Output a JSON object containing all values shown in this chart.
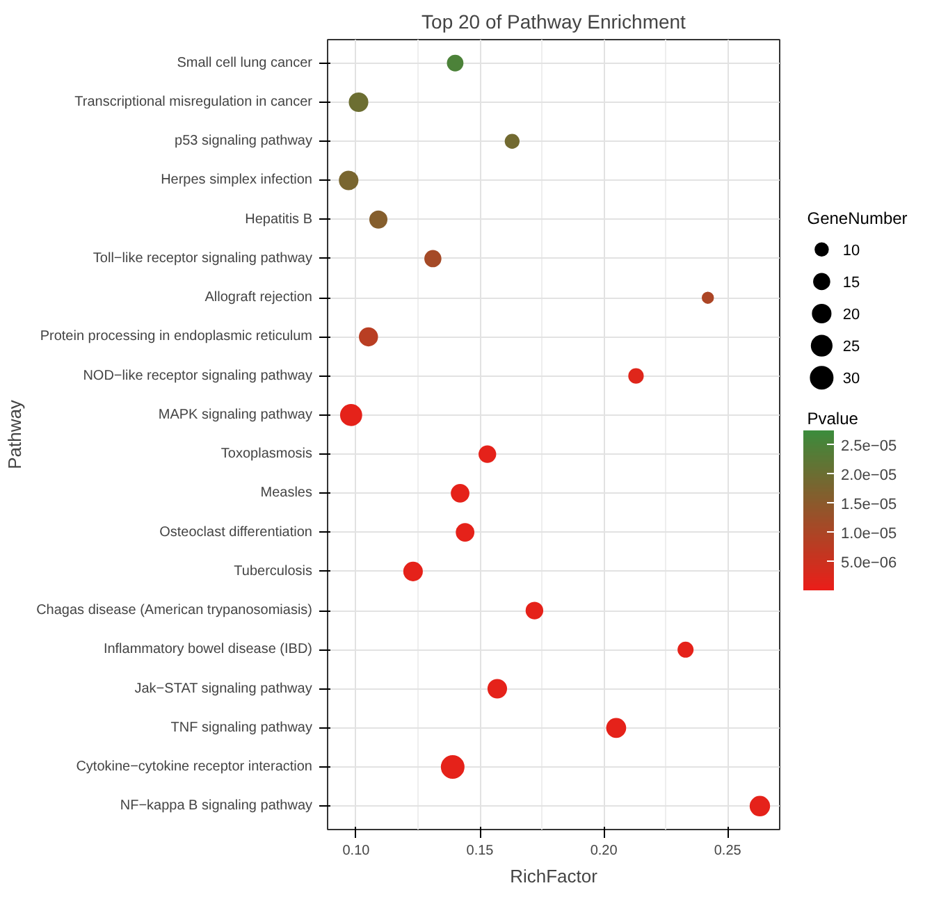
{
  "chart_data": {
    "type": "bubble",
    "title": "Top 20 of Pathway Enrichment",
    "xlabel": "RichFactor",
    "ylabel": "Pathway",
    "orientation": "horizontal",
    "categories": [
      "Small cell lung cancer",
      "Transcriptional misregulation in cancer",
      "p53 signaling pathway",
      "Herpes simplex infection",
      "Hepatitis B",
      "Toll−like receptor signaling pathway",
      "Allograft rejection",
      "Protein processing in endoplasmic reticulum",
      "NOD−like receptor signaling pathway",
      "MAPK signaling pathway",
      "Toxoplasmosis",
      "Measles",
      "Osteoclast differentiation",
      "Tuberculosis",
      "Chagas disease (American trypanosomiasis)",
      "Inflammatory bowel disease (IBD)",
      "Jak−STAT signaling pathway",
      "TNF signaling pathway",
      "Cytokine−cytokine receptor interaction",
      "NF−kappa B signaling pathway"
    ],
    "values": [
      0.14,
      0.101,
      0.163,
      0.097,
      0.109,
      0.131,
      0.242,
      0.105,
      0.213,
      0.098,
      0.153,
      0.142,
      0.144,
      0.123,
      0.172,
      0.233,
      0.157,
      0.205,
      0.139,
      0.263
    ],
    "sizes": [
      14,
      20,
      11,
      20,
      17,
      15,
      7,
      19,
      12,
      26,
      16,
      18,
      18,
      20,
      16,
      13,
      20,
      21,
      30,
      22
    ],
    "cvalues": [
      2.5e-05,
      2e-05,
      1.9e-05,
      1.8e-05,
      1.6e-05,
      1.1e-05,
      1e-05,
      8e-06,
      2e-06,
      1e-06,
      1e-06,
      1e-06,
      1e-06,
      1e-06,
      1e-06,
      1e-06,
      1e-06,
      1e-06,
      1e-06,
      1e-06
    ],
    "size_legend": [
      10,
      15,
      20,
      25,
      30
    ],
    "legend_title": "GeneNumber",
    "clabel": "Pvalue",
    "clim": [
      1e-07,
      2.75e-05
    ],
    "cticks": [
      {
        "value": 5e-06,
        "label": "5.0e−06"
      },
      {
        "value": 1e-05,
        "label": "1.0e−05"
      },
      {
        "value": 1.5e-05,
        "label": "1.5e−05"
      },
      {
        "value": 2e-05,
        "label": "2.0e−05"
      },
      {
        "value": 2.5e-05,
        "label": "2.5e−05"
      }
    ],
    "xlim": [
      0.0885,
      0.271
    ],
    "xticks": [
      {
        "value": 0.1,
        "label": "0.10"
      },
      {
        "value": 0.15,
        "label": "0.15"
      },
      {
        "value": 0.2,
        "label": "0.20"
      },
      {
        "value": 0.25,
        "label": "0.25"
      }
    ],
    "grid": true,
    "marker": "circle"
  }
}
